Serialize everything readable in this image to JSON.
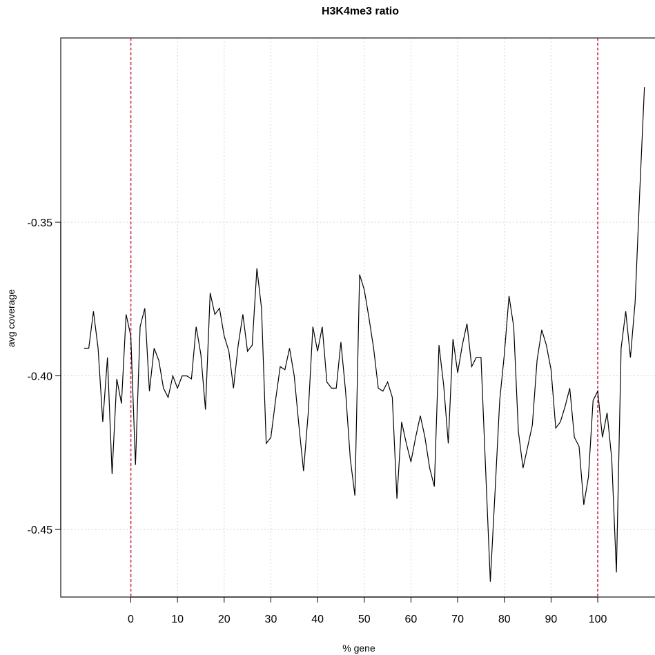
{
  "chart_data": {
    "type": "line",
    "title": "H3K4me3 ratio",
    "xlabel": "% gene",
    "ylabel": "avg coverage",
    "xlim": [
      -15,
      113
    ],
    "ylim": [
      -0.472,
      -0.29
    ],
    "x_ticks": [
      0,
      10,
      20,
      30,
      40,
      50,
      60,
      70,
      80,
      90,
      100
    ],
    "y_ticks": [
      -0.45,
      -0.4,
      -0.35
    ],
    "y_tick_labels": [
      "-0.45",
      "-0.40",
      "-0.35"
    ],
    "grid": true,
    "vertical_markers": [
      0,
      100
    ],
    "marker_color": "#d7526b",
    "line_color": "#000000",
    "series": [
      {
        "x": [
          -10,
          -9,
          -8,
          -7,
          -6,
          -5,
          -4,
          -3,
          -2,
          -1,
          0,
          1,
          2,
          3,
          4,
          5,
          6,
          7,
          8,
          9,
          10,
          11,
          12,
          13,
          14,
          15,
          16,
          17,
          18,
          19,
          20,
          21,
          22,
          23,
          24,
          25,
          26,
          27,
          28,
          29,
          30,
          31,
          32,
          33,
          34,
          35,
          36,
          37,
          38,
          39,
          40,
          41,
          42,
          43,
          44,
          45,
          46,
          47,
          48,
          49,
          50,
          51,
          52,
          53,
          54,
          55,
          56,
          57,
          58,
          59,
          60,
          61,
          62,
          63,
          64,
          65,
          66,
          67,
          68,
          69,
          70,
          71,
          72,
          73,
          74,
          75,
          76,
          77,
          78,
          79,
          80,
          81,
          82,
          83,
          84,
          85,
          86,
          87,
          88,
          89,
          90,
          91,
          92,
          93,
          94,
          95,
          96,
          97,
          98,
          99,
          100,
          101,
          102,
          103,
          104,
          105,
          106,
          107,
          108,
          109,
          110
        ],
        "y": [
          -0.391,
          -0.391,
          -0.379,
          -0.391,
          -0.415,
          -0.394,
          -0.432,
          -0.401,
          -0.409,
          -0.38,
          -0.387,
          -0.429,
          -0.384,
          -0.378,
          -0.405,
          -0.391,
          -0.395,
          -0.404,
          -0.407,
          -0.4,
          -0.404,
          -0.4,
          -0.4,
          -0.401,
          -0.384,
          -0.393,
          -0.411,
          -0.373,
          -0.38,
          -0.378,
          -0.387,
          -0.392,
          -0.404,
          -0.39,
          -0.38,
          -0.392,
          -0.39,
          -0.365,
          -0.378,
          -0.422,
          -0.42,
          -0.408,
          -0.397,
          -0.398,
          -0.391,
          -0.4,
          -0.416,
          -0.431,
          -0.412,
          -0.384,
          -0.392,
          -0.384,
          -0.402,
          -0.404,
          -0.404,
          -0.389,
          -0.405,
          -0.427,
          -0.439,
          -0.367,
          -0.372,
          -0.381,
          -0.391,
          -0.404,
          -0.405,
          -0.402,
          -0.407,
          -0.44,
          -0.415,
          -0.422,
          -0.428,
          -0.42,
          -0.413,
          -0.42,
          -0.43,
          -0.436,
          -0.39,
          -0.403,
          -0.422,
          -0.388,
          -0.399,
          -0.39,
          -0.383,
          -0.397,
          -0.394,
          -0.394,
          -0.431,
          -0.467,
          -0.438,
          -0.408,
          -0.393,
          -0.374,
          -0.384,
          -0.418,
          -0.43,
          -0.423,
          -0.416,
          -0.395,
          -0.385,
          -0.39,
          -0.398,
          -0.417,
          -0.415,
          -0.41,
          -0.404,
          -0.42,
          -0.423,
          -0.442,
          -0.433,
          -0.408,
          -0.405,
          -0.42,
          -0.412,
          -0.427,
          -0.464,
          -0.391,
          -0.379,
          -0.394,
          -0.376,
          -0.34,
          -0.306
        ]
      }
    ]
  }
}
